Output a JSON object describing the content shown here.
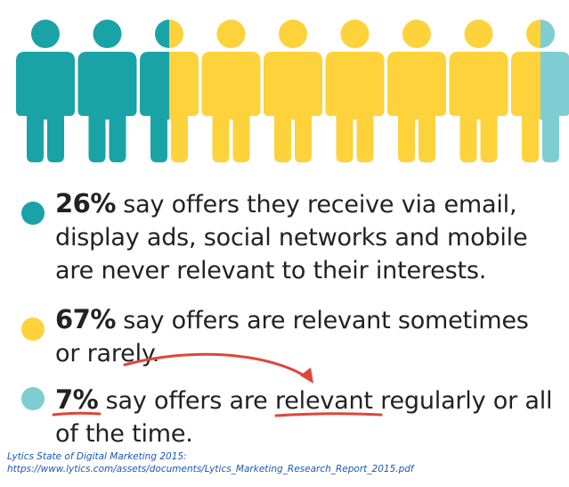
{
  "colors": {
    "teal": "#1aa3a7",
    "yellow": "#fdd23b",
    "light_teal": "#7ecdd3",
    "annotation_red": "#e0453b",
    "text": "#222222",
    "source_link": "#1a56b8"
  },
  "people_icons": [
    {
      "icon": "person-icon",
      "fill": [
        "teal"
      ]
    },
    {
      "icon": "person-icon",
      "fill": [
        "teal"
      ]
    },
    {
      "icon": "person-icon",
      "fill": [
        "teal",
        "yellow"
      ]
    },
    {
      "icon": "person-icon",
      "fill": [
        "yellow"
      ]
    },
    {
      "icon": "person-icon",
      "fill": [
        "yellow"
      ]
    },
    {
      "icon": "person-icon",
      "fill": [
        "yellow"
      ]
    },
    {
      "icon": "person-icon",
      "fill": [
        "yellow"
      ]
    },
    {
      "icon": "person-icon",
      "fill": [
        "yellow"
      ]
    },
    {
      "icon": "person-icon",
      "fill": [
        "yellow",
        "light_teal"
      ]
    }
  ],
  "stats": [
    {
      "percent": "26%",
      "line1": " say offers they receive via email,",
      "line2": "display ads, social networks and mobile",
      "line3": "are never relevant to their interests.",
      "color": "teal"
    },
    {
      "percent": "67%",
      "line1": " say offers are relevant sometimes",
      "line2": "or rarely.",
      "color": "yellow"
    },
    {
      "percent": "7%",
      "text_a": " say offers are ",
      "highlight": "relevant",
      "text_b": " regularly or all",
      "line2": "of the time.",
      "color": "light_teal"
    }
  ],
  "source": {
    "line1": "Lytics State of Digital Marketing 2015:",
    "line2": "https://www.lytics.com/assets/documents/Lytics_Marketing_Research_Report_2015.pdf"
  }
}
